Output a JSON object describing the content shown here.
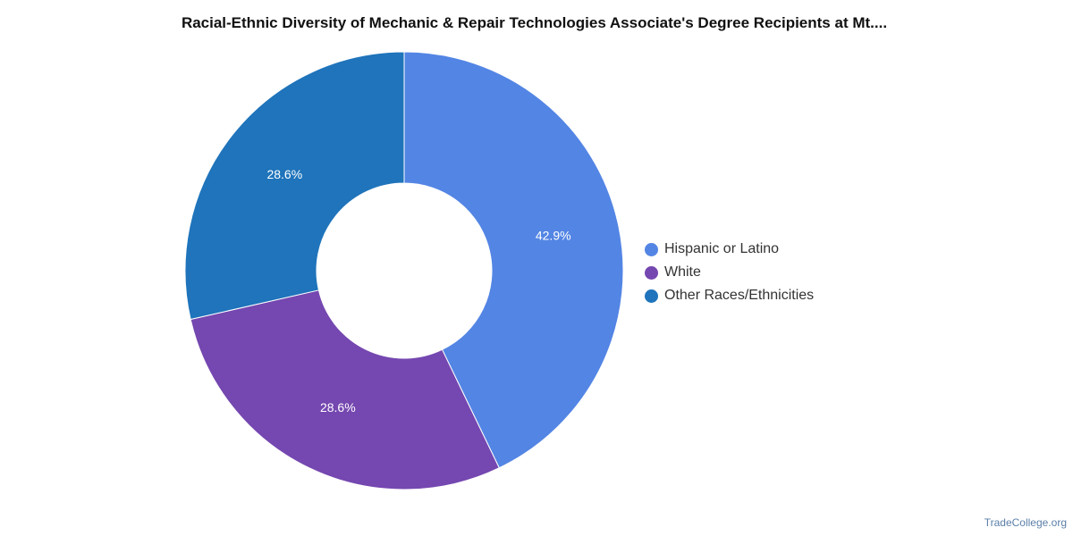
{
  "chart_data": {
    "type": "pie",
    "title": "Racial-Ethnic Diversity of Mechanic & Repair Technologies Associate's Degree Recipients at Mt....",
    "categories": [
      "Hispanic or Latino",
      "White",
      "Other Races/Ethnicities"
    ],
    "values": [
      42.9,
      28.6,
      28.6
    ],
    "value_labels": [
      "42.9%",
      "28.6%",
      "28.6%"
    ],
    "colors": [
      "#5385e4",
      "#7547b0",
      "#1f74bb"
    ],
    "donut": true,
    "legend_position": "right"
  },
  "watermark": "TradeCollege.org"
}
